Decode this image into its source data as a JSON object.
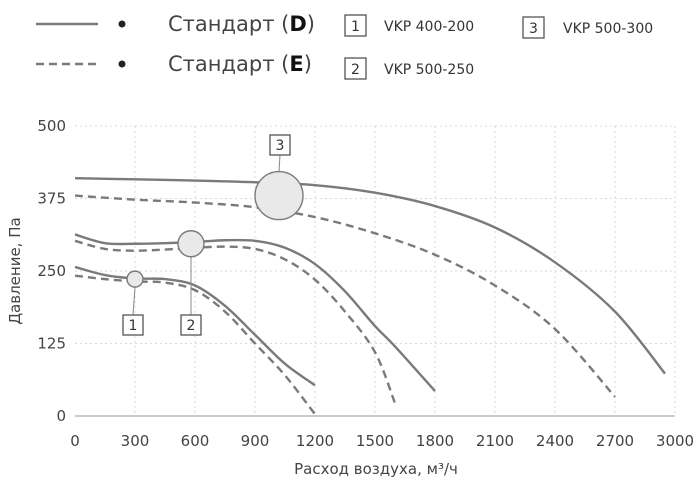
{
  "legend": {
    "standards": [
      {
        "label_prefix": "Стандарт (",
        "code": "D",
        "label_suffix": ")",
        "style": "solid"
      },
      {
        "label_prefix": "Стандарт (",
        "code": "E",
        "label_suffix": ")",
        "style": "dashed"
      }
    ],
    "models": [
      {
        "num": "1",
        "name": "VKP 400-200"
      },
      {
        "num": "2",
        "name": "VKP 500-250"
      },
      {
        "num": "3",
        "name": "VKP 500-300"
      }
    ]
  },
  "chart_data": {
    "type": "line",
    "xlabel": "Расход воздуха, м³/ч",
    "ylabel": "Давление, Па",
    "xlim": [
      0,
      3000
    ],
    "ylim": [
      0,
      500
    ],
    "xticks": [
      0,
      300,
      600,
      900,
      1200,
      1500,
      1800,
      2100,
      2400,
      2700,
      3000
    ],
    "yticks": [
      0,
      125,
      250,
      375,
      500
    ],
    "grid": true,
    "series": [
      {
        "model": "1",
        "standard": "D",
        "style": "solid",
        "x": [
          0,
          150,
          300,
          450,
          600,
          750,
          900,
          1050,
          1200
        ],
        "y": [
          257,
          243,
          237,
          236,
          225,
          190,
          140,
          90,
          53
        ]
      },
      {
        "model": "1",
        "standard": "E",
        "style": "dashed",
        "x": [
          0,
          150,
          300,
          450,
          600,
          750,
          900,
          1050,
          1200
        ],
        "y": [
          242,
          236,
          232,
          230,
          217,
          180,
          125,
          70,
          3
        ]
      },
      {
        "model": "2",
        "standard": "D",
        "style": "solid",
        "x": [
          0,
          150,
          300,
          450,
          600,
          750,
          900,
          1050,
          1200,
          1350,
          1500,
          1600,
          1800
        ],
        "y": [
          313,
          298,
          297,
          298,
          300,
          303,
          302,
          290,
          262,
          215,
          155,
          120,
          43
        ]
      },
      {
        "model": "2",
        "standard": "E",
        "style": "dashed",
        "x": [
          0,
          150,
          300,
          450,
          600,
          750,
          900,
          1050,
          1200,
          1350,
          1500,
          1600
        ],
        "y": [
          302,
          288,
          285,
          287,
          290,
          292,
          288,
          270,
          235,
          180,
          110,
          22
        ]
      },
      {
        "model": "3",
        "standard": "D",
        "style": "solid",
        "x": [
          0,
          300,
          600,
          900,
          1200,
          1500,
          1800,
          2100,
          2400,
          2700,
          2950
        ],
        "y": [
          410,
          408,
          406,
          403,
          398,
          385,
          362,
          325,
          265,
          180,
          73
        ]
      },
      {
        "model": "3",
        "standard": "E",
        "style": "dashed",
        "x": [
          0,
          300,
          600,
          900,
          1200,
          1500,
          1800,
          2100,
          2400,
          2700
        ],
        "y": [
          380,
          373,
          368,
          360,
          343,
          315,
          278,
          225,
          150,
          33
        ]
      }
    ],
    "operating_points": [
      {
        "model": "1",
        "x": 300,
        "y": 236
      },
      {
        "model": "2",
        "x": 580,
        "y": 297
      },
      {
        "model": "3",
        "x": 1020,
        "y": 380
      }
    ]
  }
}
